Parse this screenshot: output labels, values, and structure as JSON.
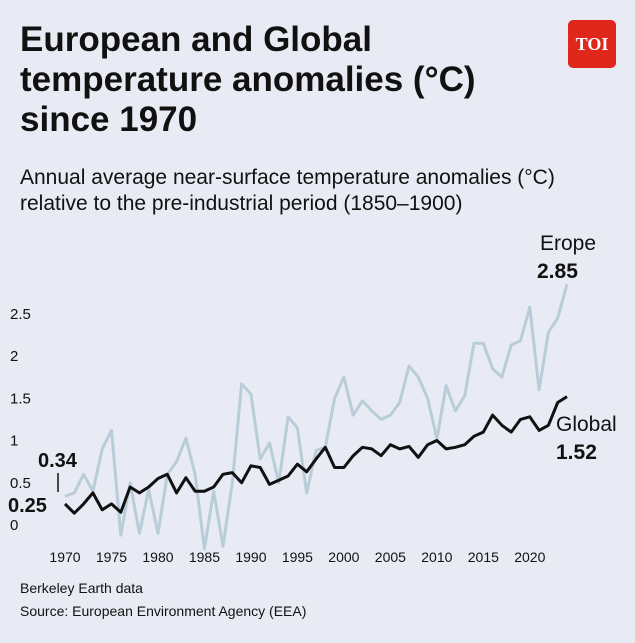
{
  "title": "European and Global temperature anomalies (°C) since 1970",
  "subtitle": "Annual average near-surface temperature anomalies (°C) relative to the pre-industrial period (1850–1900)",
  "logo": {
    "text": "TOI"
  },
  "footer": {
    "data_credit": "Berkeley Earth data",
    "source": "Source: European Environment Agency (EEA)"
  },
  "chart_data": {
    "type": "line",
    "x": [
      1970,
      1971,
      1972,
      1973,
      1974,
      1975,
      1976,
      1977,
      1978,
      1979,
      1980,
      1981,
      1982,
      1983,
      1984,
      1985,
      1986,
      1987,
      1988,
      1989,
      1990,
      1991,
      1992,
      1993,
      1994,
      1995,
      1996,
      1997,
      1998,
      1999,
      2000,
      2001,
      2002,
      2003,
      2004,
      2005,
      2006,
      2007,
      2008,
      2009,
      2010,
      2011,
      2012,
      2013,
      2014,
      2015,
      2016,
      2017,
      2018,
      2019,
      2020,
      2021,
      2022,
      2023,
      2024
    ],
    "series": [
      {
        "name": "Erope",
        "color": "#b9cdd8",
        "end_label": "2.85",
        "start_label": "0.34",
        "values": [
          0.34,
          0.38,
          0.6,
          0.4,
          0.9,
          1.12,
          -0.12,
          0.5,
          -0.1,
          0.42,
          -0.1,
          0.6,
          0.75,
          1.03,
          0.6,
          -0.28,
          0.4,
          -0.25,
          0.5,
          1.67,
          1.55,
          0.78,
          0.97,
          0.5,
          1.28,
          1.15,
          0.38,
          0.88,
          0.92,
          1.5,
          1.75,
          1.3,
          1.47,
          1.35,
          1.25,
          1.3,
          1.45,
          1.88,
          1.75,
          1.5,
          1.02,
          1.65,
          1.35,
          1.53,
          2.15,
          2.15,
          1.85,
          1.75,
          2.13,
          2.18,
          2.58,
          1.6,
          2.28,
          2.45,
          2.85
        ]
      },
      {
        "name": "Global",
        "color": "#111111",
        "end_label": "1.52",
        "start_label": "0.25",
        "values": [
          0.25,
          0.14,
          0.25,
          0.38,
          0.18,
          0.25,
          0.15,
          0.45,
          0.38,
          0.45,
          0.55,
          0.6,
          0.38,
          0.56,
          0.4,
          0.4,
          0.45,
          0.6,
          0.62,
          0.5,
          0.7,
          0.68,
          0.48,
          0.53,
          0.58,
          0.72,
          0.63,
          0.78,
          0.92,
          0.68,
          0.68,
          0.82,
          0.92,
          0.9,
          0.82,
          0.95,
          0.9,
          0.93,
          0.8,
          0.95,
          1.0,
          0.9,
          0.92,
          0.95,
          1.05,
          1.1,
          1.3,
          1.18,
          1.1,
          1.25,
          1.28,
          1.12,
          1.18,
          1.45,
          1.52
        ]
      }
    ],
    "y_ticks": [
      "0",
      "0.5",
      "1",
      "1.5",
      "2",
      "2.5"
    ],
    "x_ticks": [
      "1970",
      "1975",
      "1980",
      "1985",
      "1990",
      "1995",
      "2000",
      "2005",
      "2010",
      "2015",
      "2020"
    ],
    "ylim": [
      -0.3,
      3.0
    ],
    "xlim": [
      1970,
      2024
    ],
    "grid": false,
    "legend": "inline end labels"
  }
}
